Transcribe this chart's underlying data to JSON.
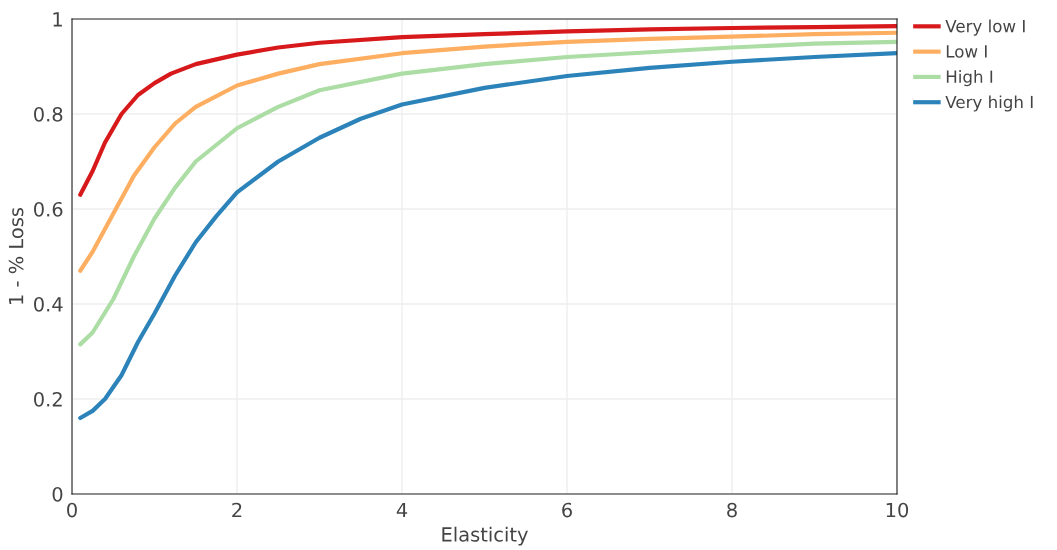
{
  "chart_data": {
    "type": "line",
    "xlabel": "Elasticity",
    "ylabel": "1 - % Loss",
    "xlim": [
      0,
      10
    ],
    "xticks": [
      0,
      2,
      4,
      6,
      8,
      10
    ],
    "ylim": [
      0,
      1
    ],
    "yticks": [
      0,
      0.2,
      0.4,
      0.6,
      0.8,
      1
    ],
    "grid": true,
    "legend": "top right",
    "marker": "none",
    "line_style": "solid",
    "series": [
      {
        "name": "Very low I",
        "color": "#d7191c",
        "x": [
          0.1,
          0.25,
          0.4,
          0.6,
          0.8,
          1.0,
          1.2,
          1.5,
          2,
          2.5,
          3,
          4,
          5,
          6,
          7,
          8,
          9,
          10
        ],
        "values": [
          0.63,
          0.68,
          0.74,
          0.8,
          0.84,
          0.865,
          0.885,
          0.905,
          0.925,
          0.94,
          0.95,
          0.962,
          0.968,
          0.974,
          0.978,
          0.981,
          0.983,
          0.985
        ]
      },
      {
        "name": "Low I",
        "color": "#fdae61",
        "x": [
          0.1,
          0.25,
          0.5,
          0.75,
          1.0,
          1.25,
          1.5,
          2,
          2.5,
          3,
          4,
          5,
          6,
          7,
          8,
          9,
          10
        ],
        "values": [
          0.47,
          0.51,
          0.59,
          0.67,
          0.73,
          0.78,
          0.815,
          0.86,
          0.885,
          0.905,
          0.928,
          0.942,
          0.952,
          0.958,
          0.963,
          0.968,
          0.971
        ]
      },
      {
        "name": "High I",
        "color": "#abdda4",
        "x": [
          0.1,
          0.25,
          0.5,
          0.75,
          1.0,
          1.25,
          1.5,
          2,
          2.5,
          3,
          4,
          5,
          6,
          7,
          8,
          9,
          10
        ],
        "values": [
          0.315,
          0.34,
          0.41,
          0.5,
          0.58,
          0.645,
          0.7,
          0.77,
          0.815,
          0.85,
          0.885,
          0.905,
          0.92,
          0.93,
          0.94,
          0.948,
          0.952
        ]
      },
      {
        "name": "Very high I",
        "color": "#2b83ba",
        "x": [
          0.1,
          0.25,
          0.4,
          0.6,
          0.8,
          1.0,
          1.25,
          1.5,
          1.75,
          2,
          2.5,
          3,
          3.5,
          4,
          5,
          6,
          7,
          8,
          9,
          10
        ],
        "values": [
          0.16,
          0.175,
          0.2,
          0.25,
          0.32,
          0.38,
          0.46,
          0.53,
          0.585,
          0.635,
          0.7,
          0.75,
          0.79,
          0.82,
          0.855,
          0.88,
          0.897,
          0.91,
          0.92,
          0.928
        ]
      }
    ]
  }
}
